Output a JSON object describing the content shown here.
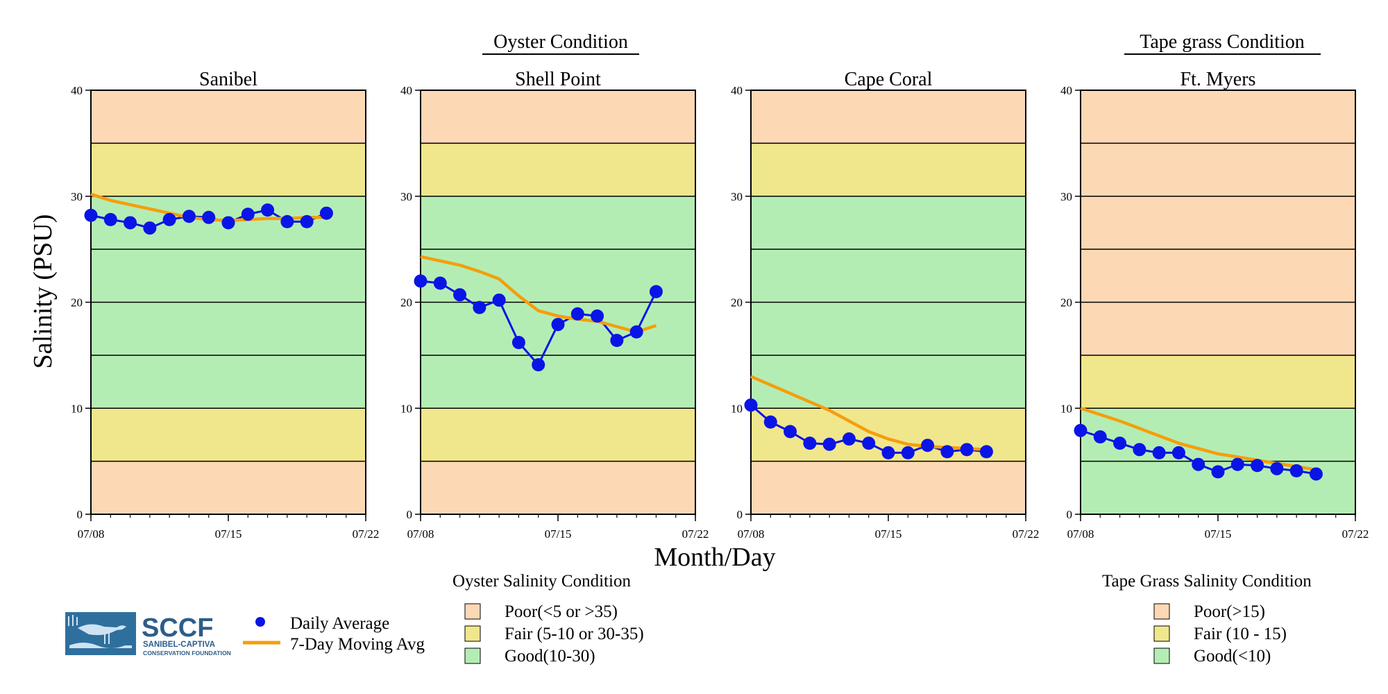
{
  "figure": {
    "group_titles": [
      {
        "id": "oyster",
        "text": "Oyster Condition"
      },
      {
        "id": "tapegrass",
        "text": "Tape grass Condition"
      }
    ],
    "ylabel": "Salinity (PSU)",
    "xlabel": "Month/Day",
    "logo": {
      "abbr": "SCCF",
      "line1": "SANIBEL-CAPTIVA",
      "line2": "CONSERVATION FOUNDATION",
      "colors": {
        "panel": "#2f6f9e",
        "text": "#2c5d8a",
        "light": "#cfe3f2"
      }
    },
    "legend_series": [
      {
        "name": "Daily Average",
        "kind": "marker",
        "color": "#0a14e6"
      },
      {
        "name": "7-Day Moving Avg",
        "kind": "line",
        "color": "#f59e0b"
      }
    ],
    "oyster_legend": {
      "title": "Oyster Salinity Condition",
      "items": [
        {
          "label": "Poor(<5 or >35)",
          "color": "#fdd8b5"
        },
        {
          "label": "Fair (5-10 or 30-35)",
          "color": "#f0e68c"
        },
        {
          "label": "Good(10-30)",
          "color": "#b4edb4"
        }
      ]
    },
    "tapegrass_legend": {
      "title": "Tape Grass Salinity Condition",
      "items": [
        {
          "label": "Poor(>15)",
          "color": "#fdd8b5"
        },
        {
          "label": "Fair (10 - 15)",
          "color": "#f0e68c"
        },
        {
          "label": "Good(<10)",
          "color": "#b4edb4"
        }
      ]
    }
  },
  "chart_data": [
    {
      "type": "line",
      "title": "Sanibel",
      "group": "oyster",
      "xlabel": "Month/Day",
      "ylabel": "Salinity (PSU)",
      "ylim": [
        0,
        40
      ],
      "yticks": [
        "0",
        "10",
        "20",
        "30",
        "40"
      ],
      "xlim": [
        "07/08",
        "07/22"
      ],
      "xticks": [
        "07/08",
        "07/15",
        "07/22"
      ],
      "bands": [
        {
          "from": 0,
          "to": 5,
          "color": "#fdd8b5"
        },
        {
          "from": 5,
          "to": 10,
          "color": "#f0e68c"
        },
        {
          "from": 10,
          "to": 30,
          "color": "#b4edb4"
        },
        {
          "from": 30,
          "to": 35,
          "color": "#f0e68c"
        },
        {
          "from": 35,
          "to": 40,
          "color": "#fdd8b5"
        }
      ],
      "gridlines": [
        5,
        10,
        15,
        20,
        25,
        30,
        35
      ],
      "series": [
        {
          "name": "Daily Average",
          "color": "#0a14e6",
          "x": [
            "07/08",
            "07/09",
            "07/10",
            "07/11",
            "07/12",
            "07/13",
            "07/14",
            "07/15",
            "07/16",
            "07/17",
            "07/18",
            "07/19",
            "07/20"
          ],
          "y": [
            28.2,
            27.8,
            27.5,
            27.0,
            27.8,
            28.1,
            28.0,
            27.5,
            28.3,
            28.7,
            27.6,
            27.6,
            28.4
          ]
        },
        {
          "name": "7-Day Moving Avg",
          "color": "#f59e0b",
          "x": [
            "07/08",
            "07/09",
            "07/10",
            "07/11",
            "07/12",
            "07/13",
            "07/14",
            "07/15",
            "07/16",
            "07/17",
            "07/18",
            "07/19",
            "07/20"
          ],
          "y": [
            30.2,
            29.6,
            29.2,
            28.8,
            28.4,
            28.0,
            27.8,
            27.7,
            27.8,
            27.9,
            27.9,
            28.0,
            28.0
          ]
        }
      ]
    },
    {
      "type": "line",
      "title": "Shell Point",
      "group": "oyster",
      "xlabel": "Month/Day",
      "ylabel": "Salinity (PSU)",
      "ylim": [
        0,
        40
      ],
      "yticks": [
        "0",
        "10",
        "20",
        "30",
        "40"
      ],
      "xlim": [
        "07/08",
        "07/22"
      ],
      "xticks": [
        "07/08",
        "07/15",
        "07/22"
      ],
      "bands": [
        {
          "from": 0,
          "to": 5,
          "color": "#fdd8b5"
        },
        {
          "from": 5,
          "to": 10,
          "color": "#f0e68c"
        },
        {
          "from": 10,
          "to": 30,
          "color": "#b4edb4"
        },
        {
          "from": 30,
          "to": 35,
          "color": "#f0e68c"
        },
        {
          "from": 35,
          "to": 40,
          "color": "#fdd8b5"
        }
      ],
      "gridlines": [
        5,
        10,
        15,
        20,
        25,
        30,
        35
      ],
      "series": [
        {
          "name": "Daily Average",
          "color": "#0a14e6",
          "x": [
            "07/08",
            "07/09",
            "07/10",
            "07/11",
            "07/12",
            "07/13",
            "07/14",
            "07/15",
            "07/16",
            "07/17",
            "07/18",
            "07/19",
            "07/20"
          ],
          "y": [
            22.0,
            21.8,
            20.7,
            19.5,
            20.2,
            16.2,
            14.1,
            17.9,
            18.9,
            18.7,
            16.4,
            17.2,
            21.0
          ]
        },
        {
          "name": "7-Day Moving Avg",
          "color": "#f59e0b",
          "x": [
            "07/08",
            "07/09",
            "07/10",
            "07/11",
            "07/12",
            "07/13",
            "07/14",
            "07/15",
            "07/16",
            "07/17",
            "07/18",
            "07/19",
            "07/20"
          ],
          "y": [
            24.3,
            23.9,
            23.5,
            22.9,
            22.2,
            20.6,
            19.2,
            18.7,
            18.4,
            18.2,
            17.7,
            17.2,
            17.8
          ]
        }
      ]
    },
    {
      "type": "line",
      "title": "Cape Coral",
      "group": "oyster",
      "xlabel": "Month/Day",
      "ylabel": "Salinity (PSU)",
      "ylim": [
        0,
        40
      ],
      "yticks": [
        "0",
        "10",
        "20",
        "30",
        "40"
      ],
      "xlim": [
        "07/08",
        "07/22"
      ],
      "xticks": [
        "07/08",
        "07/15",
        "07/22"
      ],
      "bands": [
        {
          "from": 0,
          "to": 5,
          "color": "#fdd8b5"
        },
        {
          "from": 5,
          "to": 10,
          "color": "#f0e68c"
        },
        {
          "from": 10,
          "to": 30,
          "color": "#b4edb4"
        },
        {
          "from": 30,
          "to": 35,
          "color": "#f0e68c"
        },
        {
          "from": 35,
          "to": 40,
          "color": "#fdd8b5"
        }
      ],
      "gridlines": [
        5,
        10,
        15,
        20,
        25,
        30,
        35
      ],
      "series": [
        {
          "name": "Daily Average",
          "color": "#0a14e6",
          "x": [
            "07/08",
            "07/09",
            "07/10",
            "07/11",
            "07/12",
            "07/13",
            "07/14",
            "07/15",
            "07/16",
            "07/17",
            "07/18",
            "07/19",
            "07/20"
          ],
          "y": [
            10.3,
            8.7,
            7.8,
            6.7,
            6.6,
            7.1,
            6.7,
            5.8,
            5.8,
            6.5,
            5.9,
            6.1,
            5.9
          ]
        },
        {
          "name": "7-Day Moving Avg",
          "color": "#f59e0b",
          "x": [
            "07/08",
            "07/09",
            "07/10",
            "07/11",
            "07/12",
            "07/13",
            "07/14",
            "07/15",
            "07/16",
            "07/17",
            "07/18",
            "07/19",
            "07/20"
          ],
          "y": [
            13.0,
            12.2,
            11.4,
            10.6,
            9.8,
            8.8,
            7.8,
            7.1,
            6.6,
            6.4,
            6.3,
            6.2,
            6.1
          ]
        }
      ]
    },
    {
      "type": "line",
      "title": "Ft. Myers",
      "group": "tapegrass",
      "xlabel": "Month/Day",
      "ylabel": "Salinity (PSU)",
      "ylim": [
        0,
        40
      ],
      "yticks": [
        "0",
        "10",
        "20",
        "30",
        "40"
      ],
      "xlim": [
        "07/08",
        "07/22"
      ],
      "xticks": [
        "07/08",
        "07/15",
        "07/22"
      ],
      "bands": [
        {
          "from": 0,
          "to": 10,
          "color": "#b4edb4"
        },
        {
          "from": 10,
          "to": 15,
          "color": "#f0e68c"
        },
        {
          "from": 15,
          "to": 40,
          "color": "#fdd8b5"
        }
      ],
      "gridlines": [
        5,
        10,
        15,
        20,
        25,
        30,
        35
      ],
      "series": [
        {
          "name": "Daily Average",
          "color": "#0a14e6",
          "x": [
            "07/08",
            "07/09",
            "07/10",
            "07/11",
            "07/12",
            "07/13",
            "07/14",
            "07/15",
            "07/16",
            "07/17",
            "07/18",
            "07/19",
            "07/20"
          ],
          "y": [
            7.9,
            7.3,
            6.7,
            6.1,
            5.8,
            5.8,
            4.7,
            4.0,
            4.7,
            4.6,
            4.3,
            4.1,
            3.8
          ]
        },
        {
          "name": "7-Day Moving Avg",
          "color": "#f59e0b",
          "x": [
            "07/08",
            "07/09",
            "07/10",
            "07/11",
            "07/12",
            "07/13",
            "07/14",
            "07/15",
            "07/16",
            "07/17",
            "07/18",
            "07/19",
            "07/20"
          ],
          "y": [
            10.0,
            9.4,
            8.8,
            8.1,
            7.4,
            6.7,
            6.2,
            5.7,
            5.4,
            5.1,
            4.8,
            4.5,
            4.2
          ]
        }
      ]
    }
  ]
}
